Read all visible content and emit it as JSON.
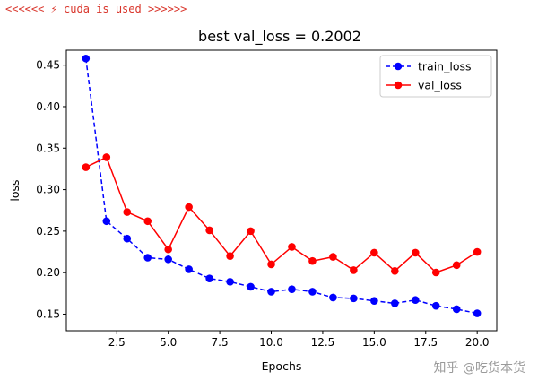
{
  "console": {
    "line": "<<<<<< ⚡ cuda is used >>>>>>"
  },
  "watermark": "知乎 @吃货本货",
  "colors": {
    "train": "#0000ff",
    "val": "#ff0000",
    "console_text": "#d9352b"
  },
  "chart_data": {
    "type": "line",
    "title": "best val_loss = 0.2002",
    "xlabel": "Epochs",
    "ylabel": "loss",
    "xlim": [
      0.05,
      20.95
    ],
    "ylim": [
      0.13,
      0.468
    ],
    "xticks": [
      2.5,
      5.0,
      7.5,
      10.0,
      12.5,
      15.0,
      17.5,
      20.0
    ],
    "xtick_labels": [
      "2.5",
      "5.0",
      "7.5",
      "10.0",
      "12.5",
      "15.0",
      "17.5",
      "20.0"
    ],
    "yticks": [
      0.15,
      0.2,
      0.25,
      0.3,
      0.35,
      0.4,
      0.45
    ],
    "ytick_labels": [
      "0.15",
      "0.20",
      "0.25",
      "0.30",
      "0.35",
      "0.40",
      "0.45"
    ],
    "legend_position": "top-right",
    "grid": false,
    "x": [
      1,
      2,
      3,
      4,
      5,
      6,
      7,
      8,
      9,
      10,
      11,
      12,
      13,
      14,
      15,
      16,
      17,
      18,
      19,
      20
    ],
    "series": [
      {
        "name": "train_loss",
        "style": "dashed",
        "color": "#0000ff",
        "values": [
          0.458,
          0.262,
          0.241,
          0.218,
          0.216,
          0.204,
          0.193,
          0.189,
          0.183,
          0.177,
          0.18,
          0.177,
          0.17,
          0.169,
          0.166,
          0.163,
          0.167,
          0.16,
          0.156,
          0.151
        ]
      },
      {
        "name": "val_loss",
        "style": "solid",
        "color": "#ff0000",
        "values": [
          0.327,
          0.339,
          0.273,
          0.262,
          0.228,
          0.279,
          0.251,
          0.22,
          0.25,
          0.21,
          0.231,
          0.214,
          0.219,
          0.203,
          0.224,
          0.202,
          0.224,
          0.2002,
          0.209,
          0.225
        ]
      }
    ]
  }
}
